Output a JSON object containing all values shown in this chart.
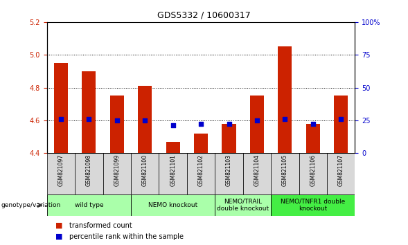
{
  "title": "GDS5332 / 10600317",
  "samples": [
    "GSM821097",
    "GSM821098",
    "GSM821099",
    "GSM821100",
    "GSM821101",
    "GSM821102",
    "GSM821103",
    "GSM821104",
    "GSM821105",
    "GSM821106",
    "GSM821107"
  ],
  "red_values": [
    4.95,
    4.9,
    4.75,
    4.81,
    4.47,
    4.52,
    4.58,
    4.75,
    5.05,
    4.58,
    4.75
  ],
  "blue_values": [
    4.61,
    4.61,
    4.6,
    4.6,
    4.57,
    4.58,
    4.58,
    4.6,
    4.61,
    4.58,
    4.61
  ],
  "ylim_left": [
    4.4,
    5.2
  ],
  "ylim_right": [
    0,
    100
  ],
  "yticks_left": [
    4.4,
    4.6,
    4.8,
    5.0,
    5.2
  ],
  "yticks_right": [
    0,
    25,
    50,
    75,
    100
  ],
  "yticklabels_right": [
    "0",
    "25",
    "50",
    "75",
    "100%"
  ],
  "bar_bottom": 4.4,
  "grid_lines": [
    4.6,
    4.8,
    5.0
  ],
  "bar_color": "#cc2200",
  "dot_color": "#0000cc",
  "bg_color": "#d8d8d8",
  "axis_color_left": "#cc2200",
  "axis_color_right": "#0000cc",
  "group_spans": [
    {
      "start": 0,
      "end": 2,
      "label": "wild type",
      "color": "#aaffaa"
    },
    {
      "start": 3,
      "end": 5,
      "label": "NEMO knockout",
      "color": "#aaffaa"
    },
    {
      "start": 6,
      "end": 7,
      "label": "NEMO/TRAIL\ndouble knockout",
      "color": "#aaffaa"
    },
    {
      "start": 8,
      "end": 10,
      "label": "NEMO/TNFR1 double\nknockout",
      "color": "#44ee44"
    }
  ],
  "legend_items": [
    {
      "color": "#cc2200",
      "label": "transformed count"
    },
    {
      "color": "#0000cc",
      "label": "percentile rank within the sample"
    }
  ],
  "genotype_label": "genotype/variation",
  "bar_width": 0.5,
  "dot_size": 25,
  "title_fontsize": 9,
  "tick_fontsize": 7,
  "sample_fontsize": 5.5,
  "group_fontsize": 6.5,
  "legend_fontsize": 7
}
